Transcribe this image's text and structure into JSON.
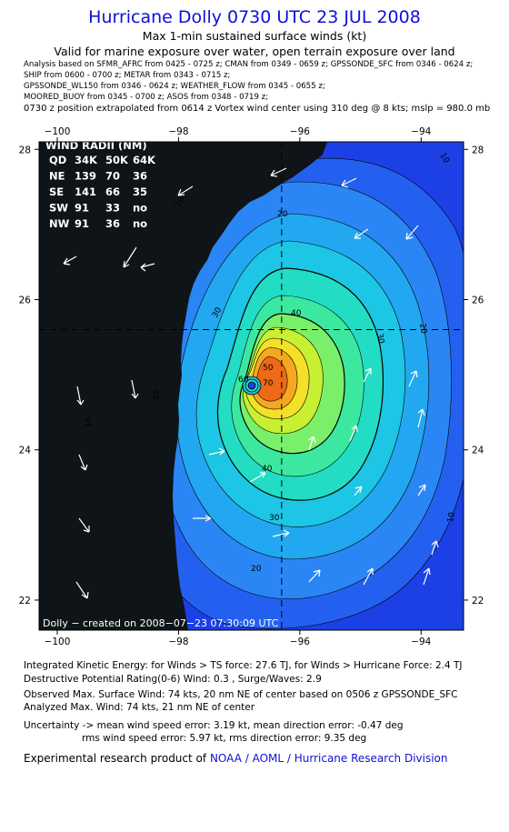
{
  "header": {
    "title": "Hurricane Dolly 0730 UTC 23 JUL 2008",
    "subtitle": "Max 1-min sustained surface winds (kt)",
    "valid": "Valid for marine exposure over water, open terrain exposure over land",
    "sources": [
      "Analysis based on  SFMR_AFRC from 0425 - 0725 z;  CMAN from 0349 - 0659 z;  GPSSONDE_SFC from 0346 - 0624 z;",
      "SHIP from 0600 - 0700 z;  METAR from 0343 - 0715 z;",
      "GPSSONDE_WL150 from 0346 - 0624 z;  WEATHER_FLOW from 0345 - 0655 z;",
      "MOORED_BUOY from 0345 - 0700 z;  ASOS from 0348 - 0719 z;"
    ],
    "position": "0730 z position extrapolated from 0614 z Vortex wind center using 310 deg @ 8 kts; mslp = 980.0 mb"
  },
  "map": {
    "lon_ticks": [
      "−100",
      "−98",
      "−96",
      "−94"
    ],
    "lat_ticks": [
      "28",
      "26",
      "24",
      "22"
    ],
    "lon_values": [
      -100,
      -98,
      -96,
      -94
    ],
    "lat_values": [
      28,
      26,
      24,
      22
    ],
    "lon_range": [
      -100.3,
      -93.3
    ],
    "lat_range": [
      21.6,
      28.1
    ],
    "center_lon": -96.3,
    "center_lat": 25.6,
    "contour_labels": [
      "10",
      "20",
      "20",
      "30",
      "40",
      "50",
      "60",
      "70",
      "40",
      "30",
      "20",
      "10"
    ],
    "wind_radii": {
      "title": "WIND RADII (NM)",
      "header": [
        "QD",
        "34K",
        "50K",
        "64K"
      ],
      "rows": [
        [
          "NE",
          "139",
          "70",
          "36"
        ],
        [
          "SE",
          "141",
          "66",
          "35"
        ],
        [
          "SW",
          "91",
          "33",
          "no"
        ],
        [
          "NW",
          "91",
          "36",
          "no"
        ]
      ]
    },
    "credit": "Dolly − created on 2008−07−23 07:30:09 UTC",
    "colors": {
      "background": "#1c3fe6",
      "levels": [
        "#2460f0",
        "#2a86f4",
        "#21a8f0",
        "#1cc6e4",
        "#22dcc4",
        "#3ce8a0",
        "#7af06a",
        "#c8f032",
        "#f4e028",
        "#f4a820",
        "#ec6a18"
      ],
      "land": "#0e1418"
    }
  },
  "stats": {
    "ike": "Integrated Kinetic Energy:  for Winds > TS force: 27.6 TJ,  for Winds > Hurricane Force: 2.4 TJ",
    "dpr": "Destructive Potential Rating(0-6)   Wind: 0.3 , Surge/Waves: 2.9",
    "observed": "Observed Max. Surface Wind: 74 kts, 20 nm NE of center based on 0506 z GPSSONDE_SFC",
    "analyzed": "Analyzed Max. Wind: 74 kts, 21 nm NE of center",
    "uncertainty1": "Uncertainty -> mean wind speed error: 3.19 kt,   mean direction error:  -0.47 deg",
    "uncertainty2": "rms wind speed error: 5.97 kt,   rms direction error: 9.35 deg"
  },
  "footer": {
    "prefix": "Experimental research product of",
    "org": "NOAA / AOML / Hurricane Research Division"
  }
}
